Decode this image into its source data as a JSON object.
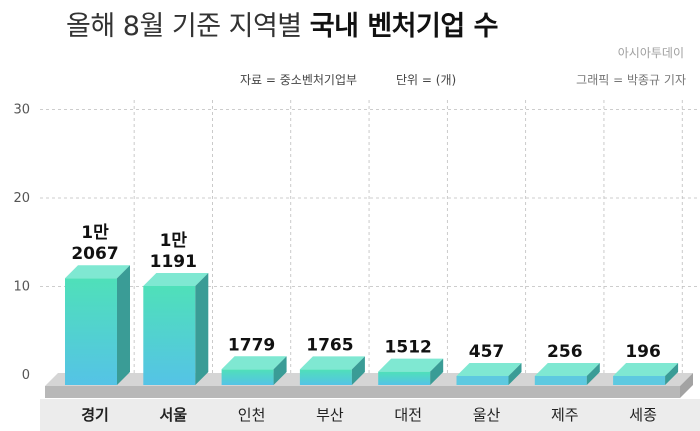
{
  "header": {
    "title_light": "올해 8월 기준 지역별",
    "title_bold": "국내 벤처기업 수",
    "brand": "아시아투데이",
    "source": "자료 = 중소벤처기업부",
    "unit": "단위 = (개)",
    "credit": "그래픽 = 박종규 기자"
  },
  "colors": {
    "bar_top": "#4fe0b9",
    "bar_bottom": "#55c3e6",
    "bar_short": "#5ec9e0",
    "grid": "#bdbdbd",
    "base": "#b8b8b8",
    "axis_band": "#ececec"
  },
  "chart_data": {
    "type": "bar",
    "title": "올해 8월 기준 지역별 국내 벤처기업 수",
    "categories": [
      "경기",
      "서울",
      "인천",
      "부산",
      "대전",
      "울산",
      "제주",
      "세종"
    ],
    "values": [
      12067,
      11191,
      1779,
      1765,
      1512,
      457,
      256,
      196
    ],
    "value_labels": [
      [
        "1만",
        "2067"
      ],
      [
        "1만",
        "1191"
      ],
      [
        "1779"
      ],
      [
        "1765"
      ],
      [
        "1512"
      ],
      [
        "457"
      ],
      [
        "256"
      ],
      [
        "196"
      ]
    ],
    "yticks": [
      0,
      10,
      20,
      30
    ],
    "ylabel": "",
    "xlabel": "",
    "unit": "개",
    "grid": true,
    "bold_categories": [
      0,
      1
    ]
  }
}
